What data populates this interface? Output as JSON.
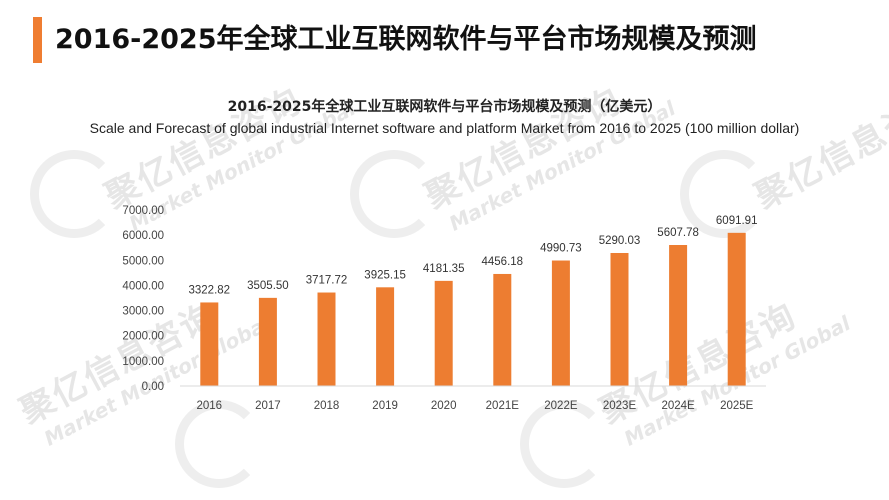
{
  "page": {
    "title": "2016-2025年全球工业互联网软件与平台市场规模及预测"
  },
  "watermark": {
    "brand_cn": "聚亿信息咨询",
    "brand_en": "Market Monitor Global"
  },
  "colors": {
    "accent": "#ef7d31",
    "bar": "#ed7d31",
    "axis": "#d9d9d9",
    "text": "#222222"
  },
  "chart_data": {
    "type": "bar",
    "title": "2016-2025年全球工业互联网软件与平台市场规模及预测（亿美元）",
    "subtitle": "Scale and Forecast of global industrial Internet software and platform Market from 2016 to 2025 (100 million dollar)",
    "categories": [
      "2016",
      "2017",
      "2018",
      "2019",
      "2020",
      "2021E",
      "2022E",
      "2023E",
      "2024E",
      "2025E"
    ],
    "values": [
      3322.82,
      3505.5,
      3717.72,
      3925.15,
      4181.35,
      4456.18,
      4990.73,
      5290.03,
      5607.78,
      6091.91
    ],
    "value_labels": [
      "3322.82",
      "3505.50",
      "3717.72",
      "3925.15",
      "4181.35",
      "4456.18",
      "4990.73",
      "5290.03",
      "5607.78",
      "6091.91"
    ],
    "yticks": [
      "0.00",
      "1000.00",
      "2000.00",
      "3000.00",
      "4000.00",
      "5000.00",
      "6000.00",
      "7000.00"
    ],
    "ylim": [
      0,
      7000
    ],
    "xlabel": "",
    "ylabel": "",
    "grid": false,
    "legend": "none"
  }
}
